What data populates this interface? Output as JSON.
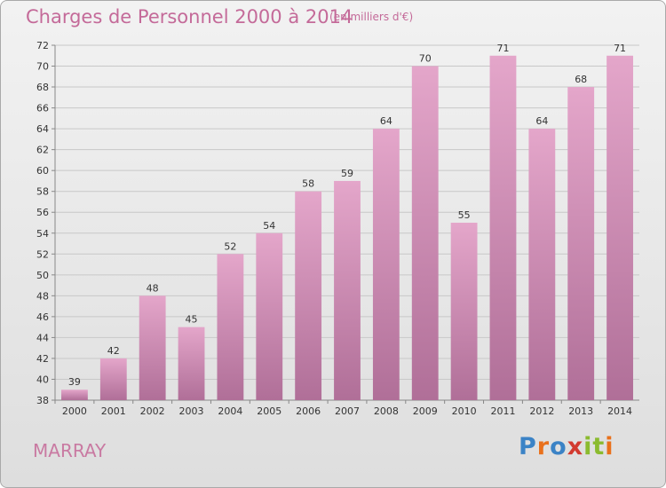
{
  "chart": {
    "title": "Charges de Personnel 2000 à 2014",
    "subtitle": "(en milliers d'€)",
    "commune": "MARRAY"
  },
  "logo": {
    "text": "Proxiti",
    "letters": [
      "P",
      "r",
      "o",
      "x",
      "i",
      "t",
      "i"
    ],
    "colors": [
      "#3b83c6",
      "#e9711c",
      "#3b83c6",
      "#d23a2f",
      "#8bbb2f",
      "#8bbb2f",
      "#e9711c"
    ]
  },
  "colors": {
    "bar_top": "#e4a6ca",
    "bar_bottom": "#b06f98",
    "title": "#c46a99",
    "axis_text": "#333333"
  },
  "chart_data": {
    "type": "bar",
    "categories": [
      "2000",
      "2001",
      "2002",
      "2003",
      "2004",
      "2005",
      "2006",
      "2007",
      "2008",
      "2009",
      "2010",
      "2011",
      "2012",
      "2013",
      "2014"
    ],
    "values": [
      39,
      42,
      48,
      45,
      52,
      54,
      58,
      59,
      64,
      70,
      55,
      71,
      64,
      68,
      71
    ],
    "ylim": [
      38,
      72
    ],
    "yticks": [
      38,
      40,
      42,
      44,
      46,
      48,
      50,
      52,
      54,
      56,
      58,
      60,
      62,
      64,
      66,
      68,
      70,
      72
    ],
    "grid": true
  }
}
